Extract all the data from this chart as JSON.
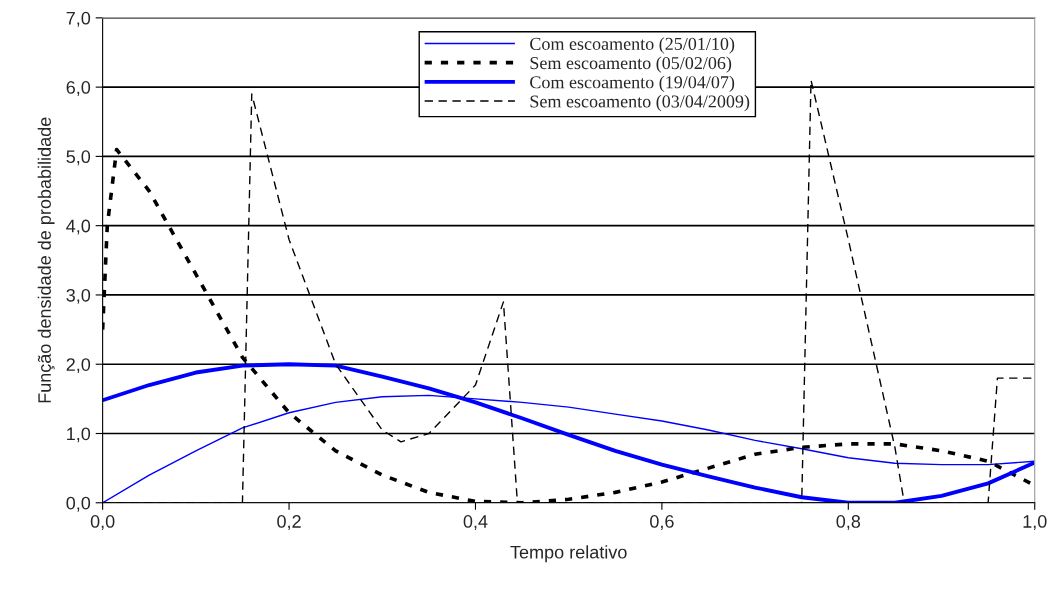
{
  "chart_data": {
    "type": "line",
    "xlabel": "Tempo relativo",
    "ylabel": "Função densidade de probabilidade",
    "xlim": [
      0,
      1
    ],
    "ylim": [
      0,
      7
    ],
    "xticks": [
      {
        "value": 0,
        "label": "0,0"
      },
      {
        "value": 0.2,
        "label": "0,2"
      },
      {
        "value": 0.4,
        "label": "0,4"
      },
      {
        "value": 0.6,
        "label": "0,6"
      },
      {
        "value": 0.8,
        "label": "0,8"
      },
      {
        "value": 1,
        "label": "1,0"
      }
    ],
    "yticks": [
      {
        "value": 0,
        "label": "0,0"
      },
      {
        "value": 1,
        "label": "1,0"
      },
      {
        "value": 2,
        "label": "2,0"
      },
      {
        "value": 3,
        "label": "3,0"
      },
      {
        "value": 4,
        "label": "4,0"
      },
      {
        "value": 5,
        "label": "5,0"
      },
      {
        "value": 6,
        "label": "6,0"
      },
      {
        "value": 7,
        "label": "7,0"
      }
    ],
    "grid": "y",
    "legend": "top",
    "marker": "none",
    "series": [
      {
        "name": "Com escoamento (25/01/10)",
        "color": "#0000ff",
        "line_style": "solid",
        "x": [
          0,
          0.05,
          0.1,
          0.15,
          0.2,
          0.25,
          0.3,
          0.35,
          0.4,
          0.45,
          0.5,
          0.55,
          0.6,
          0.65,
          0.7,
          0.75,
          0.8,
          0.85,
          0.9,
          0.95,
          1.0
        ],
        "values": [
          0,
          0.4,
          0.75,
          1.08,
          1.3,
          1.45,
          1.53,
          1.55,
          1.5,
          1.45,
          1.38,
          1.28,
          1.18,
          1.05,
          0.9,
          0.78,
          0.65,
          0.57,
          0.55,
          0.55,
          0.6
        ]
      },
      {
        "name": "Sem escoamento (05/02/06)",
        "color": "#000000",
        "line_style": "dotted",
        "x": [
          0,
          0.005,
          0.015,
          0.05,
          0.1,
          0.15,
          0.2,
          0.25,
          0.3,
          0.35,
          0.4,
          0.45,
          0.5,
          0.55,
          0.6,
          0.65,
          0.7,
          0.75,
          0.8,
          0.85,
          0.9,
          0.95,
          1.0
        ],
        "values": [
          2.5,
          4.0,
          5.1,
          4.5,
          3.3,
          2.1,
          1.3,
          0.75,
          0.4,
          0.15,
          0.02,
          0.0,
          0.05,
          0.15,
          0.3,
          0.5,
          0.7,
          0.8,
          0.85,
          0.85,
          0.75,
          0.6,
          0.25
        ]
      },
      {
        "name": "Com escoamento (19/04/07)",
        "color": "#0000ff",
        "line_style": "solid",
        "x": [
          0,
          0.05,
          0.1,
          0.15,
          0.2,
          0.25,
          0.3,
          0.35,
          0.4,
          0.45,
          0.5,
          0.55,
          0.6,
          0.65,
          0.7,
          0.75,
          0.8,
          0.85,
          0.9,
          0.95,
          1.0
        ],
        "values": [
          1.48,
          1.7,
          1.88,
          1.98,
          2.0,
          1.98,
          1.82,
          1.65,
          1.45,
          1.22,
          0.98,
          0.75,
          0.55,
          0.38,
          0.22,
          0.08,
          0.0,
          0.0,
          0.1,
          0.28,
          0.58
        ]
      },
      {
        "name": "Sem escoamento (03/04/2009)",
        "color": "#000000",
        "line_style": "dashed",
        "x": [
          0,
          0.15,
          0.16,
          0.2,
          0.25,
          0.3,
          0.32,
          0.35,
          0.4,
          0.43,
          0.445,
          0.75,
          0.76,
          0.8,
          0.85,
          0.86,
          0.95,
          0.96,
          1.0
        ],
        "values": [
          0,
          0,
          5.9,
          3.8,
          2.0,
          1.05,
          0.88,
          1.0,
          1.7,
          2.9,
          0,
          0,
          6.1,
          3.8,
          0.8,
          0,
          0,
          1.8,
          1.8
        ]
      }
    ]
  }
}
